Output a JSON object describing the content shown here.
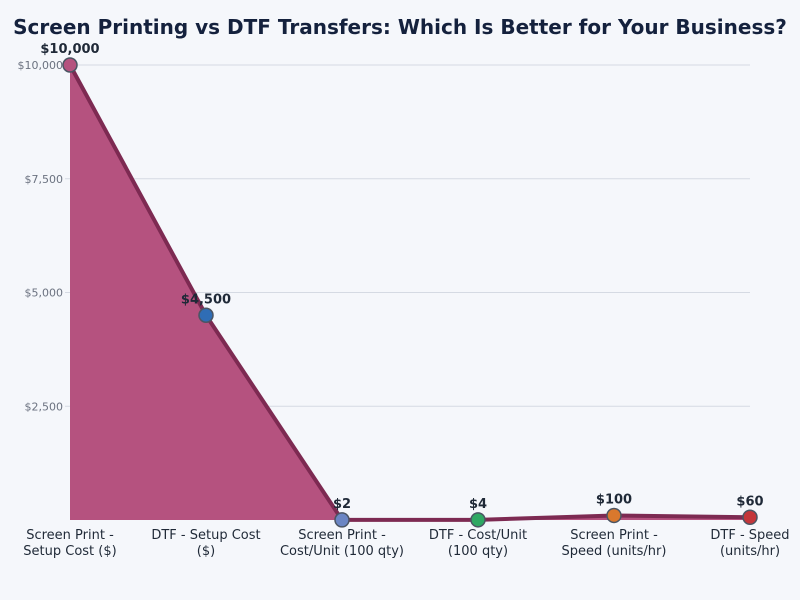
{
  "chart_data": {
    "type": "area",
    "title": "Screen Printing vs DTF Transfers: Which Is Better for Your Business?",
    "categories": [
      [
        "Screen Print -",
        "Setup Cost ($)"
      ],
      [
        "DTF - Setup Cost",
        "($)"
      ],
      [
        "Screen Print -",
        "Cost/Unit (100 qty)"
      ],
      [
        "DTF - Cost/Unit",
        "(100 qty)"
      ],
      [
        "Screen Print -",
        "Speed (units/hr)"
      ],
      [
        "DTF - Speed",
        "(units/hr)"
      ]
    ],
    "values": [
      10000,
      4500,
      2,
      4,
      100,
      60
    ],
    "data_labels": [
      "$10,000",
      "$4,500",
      "$2",
      "$4",
      "$100",
      "$60"
    ],
    "point_colors": [
      "#b5537f",
      "#2f6db5",
      "#6b86c4",
      "#2fa863",
      "#d9782d",
      "#c4363a"
    ],
    "yticks": [
      2500,
      5000,
      7500,
      10000
    ],
    "ytick_labels": [
      "$2,500",
      "$5,000",
      "$7,500",
      "$10,000"
    ],
    "ylim": [
      0,
      10000
    ],
    "fill_color": "#b5527f",
    "line_color": "#7d2a52",
    "grid": true
  }
}
